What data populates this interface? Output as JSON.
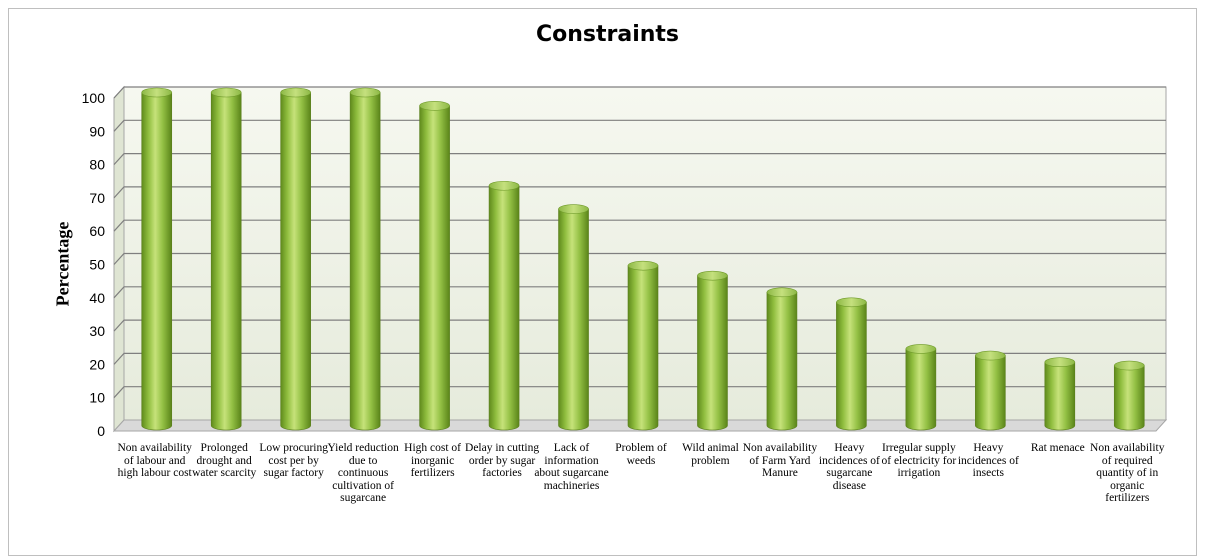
{
  "chart_data": {
    "type": "bar",
    "title": "Constraints",
    "xlabel": "",
    "ylabel": "Percentage",
    "ylim": [
      0,
      100
    ],
    "yticks": [
      0,
      10,
      20,
      30,
      40,
      50,
      60,
      70,
      80,
      90,
      100
    ],
    "grid": true,
    "legend": "none",
    "bar_color": "#8cb43c",
    "categories": [
      "Non availability of labour and high labour cost",
      "Prolonged drought and water scarcity",
      "Low procuring cost per by sugar factory",
      "Yield reduction due to continuous cultivation of sugarcane",
      "High cost of inorganic fertilizers",
      "Delay in cutting order by sugar factories",
      "Lack of information about sugarcane machineries",
      "Problem of weeds",
      "Wild animal problem",
      "Non availability of Farm Yard Manure",
      "Heavy incidences of sugarcane disease",
      "Irregular supply of electricity for irrigation",
      "Heavy incidences of insects",
      "Rat menace",
      "Non availability of required quantity of in organic fertilizers"
    ],
    "values": [
      100,
      100,
      100,
      100,
      96,
      72,
      65,
      48,
      45,
      40,
      37,
      23,
      21,
      19,
      18
    ]
  }
}
